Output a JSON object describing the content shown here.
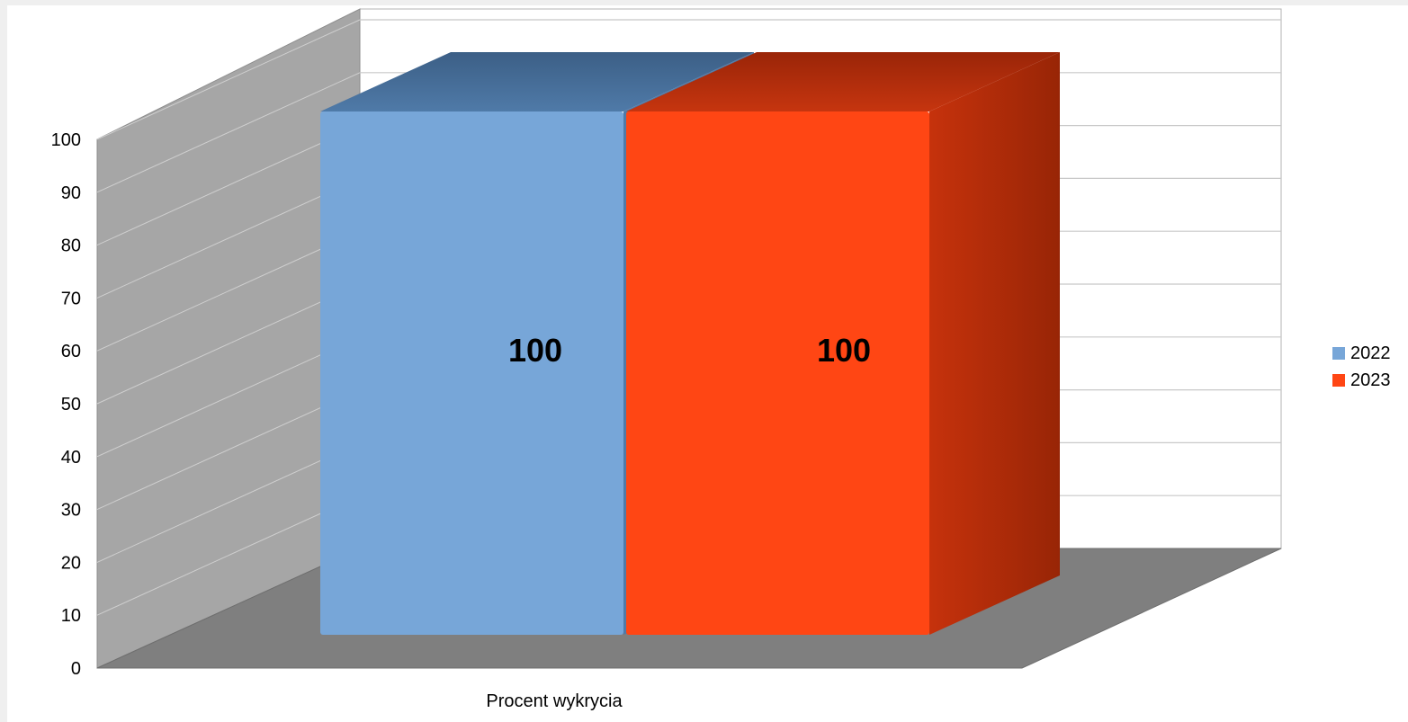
{
  "chart_data": {
    "type": "bar",
    "categories": [
      "Procent wykrycia"
    ],
    "series": [
      {
        "name": "2022",
        "values": [
          100
        ],
        "color": "#77a6d8",
        "data_label": "100"
      },
      {
        "name": "2023",
        "values": [
          100
        ],
        "color": "#ff4614",
        "data_label": "100"
      }
    ],
    "ylim": [
      0,
      100
    ],
    "yticks": [
      "0",
      "10",
      "20",
      "30",
      "40",
      "50",
      "60",
      "70",
      "80",
      "90",
      "100"
    ],
    "grid": true,
    "legend_position": "right",
    "style": "3d",
    "title": "",
    "xlabel": "",
    "ylabel": ""
  }
}
